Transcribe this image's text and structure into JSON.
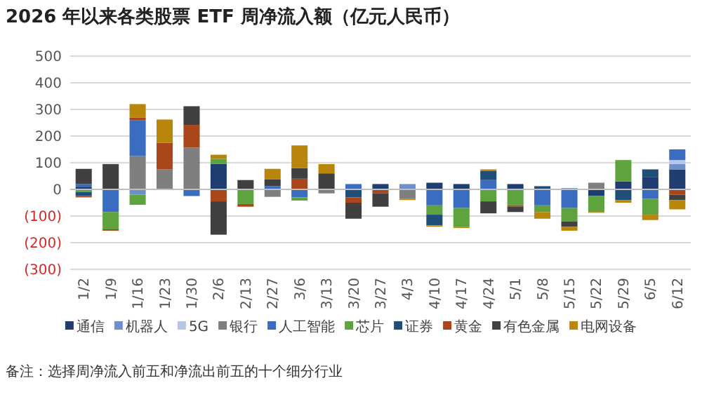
{
  "chart_data": {
    "type": "bar",
    "stacked": true,
    "title": "2026 年以来各类股票 ETF 周净流入额（亿元人民币）",
    "categories": [
      "1/2",
      "1/9",
      "1/16",
      "1/23",
      "1/30",
      "2/6",
      "2/13",
      "2/27",
      "3/6",
      "3/13",
      "3/20",
      "3/27",
      "4/3",
      "4/10",
      "4/17",
      "4/24",
      "5/1",
      "5/8",
      "5/15",
      "5/22",
      "5/29",
      "6/5",
      "6/12"
    ],
    "series": [
      {
        "name": "通信",
        "color": "#1f3d6e",
        "values": [
          10,
          null,
          null,
          null,
          null,
          95,
          null,
          null,
          null,
          null,
          null,
          20,
          null,
          25,
          20,
          null,
          20,
          null,
          null,
          -25,
          30,
          45,
          75
        ]
      },
      {
        "name": "机器人",
        "color": "#6f8fca",
        "values": [
          null,
          null,
          -20,
          null,
          null,
          null,
          null,
          null,
          null,
          null,
          null,
          null,
          20,
          null,
          null,
          null,
          null,
          null,
          5,
          null,
          null,
          null,
          20
        ]
      },
      {
        "name": "5G",
        "color": "#b4c7e7",
        "values": [
          null,
          null,
          null,
          null,
          null,
          null,
          null,
          null,
          null,
          null,
          null,
          null,
          null,
          null,
          null,
          null,
          null,
          null,
          null,
          null,
          null,
          null,
          15
        ]
      },
      {
        "name": "银行",
        "color": "#7f7f7f",
        "values": [
          null,
          null,
          125,
          75,
          157,
          null,
          null,
          -28,
          null,
          -15,
          null,
          null,
          -35,
          null,
          null,
          null,
          null,
          null,
          null,
          25,
          null,
          null,
          null
        ]
      },
      {
        "name": "人工智能",
        "color": "#3a6cc0",
        "values": [
          10,
          -85,
          135,
          null,
          -25,
          null,
          null,
          12,
          -30,
          null,
          20,
          null,
          null,
          -60,
          -70,
          35,
          null,
          -60,
          -70,
          null,
          null,
          -35,
          40
        ]
      },
      {
        "name": "芯片",
        "color": "#5fa33e",
        "values": [
          -10,
          -65,
          -38,
          null,
          null,
          20,
          -55,
          null,
          -12,
          null,
          null,
          null,
          null,
          -35,
          -70,
          -45,
          -60,
          -25,
          -50,
          -60,
          80,
          -60,
          null
        ]
      },
      {
        "name": "证券",
        "color": "#1f4e79",
        "values": [
          -15,
          null,
          null,
          null,
          null,
          null,
          null,
          null,
          null,
          null,
          -30,
          null,
          null,
          -40,
          null,
          35,
          null,
          12,
          null,
          null,
          -40,
          30,
          null
        ]
      },
      {
        "name": "黄金",
        "color": "#a9461a",
        "values": [
          -5,
          -5,
          10,
          100,
          85,
          -45,
          -10,
          null,
          40,
          null,
          -20,
          -15,
          null,
          null,
          null,
          null,
          -5,
          null,
          null,
          null,
          null,
          null,
          -20
        ]
      },
      {
        "name": "有色金属",
        "color": "#404040",
        "values": [
          57,
          95,
          null,
          null,
          70,
          -125,
          35,
          25,
          40,
          60,
          -60,
          -50,
          null,
          null,
          null,
          -45,
          -20,
          null,
          -20,
          null,
          null,
          null,
          -20
        ]
      },
      {
        "name": "电网设备",
        "color": "#b8860b",
        "values": [
          null,
          null,
          50,
          87,
          null,
          15,
          null,
          40,
          85,
          35,
          null,
          null,
          -5,
          -5,
          -5,
          5,
          null,
          -25,
          -15,
          -3,
          -10,
          -20,
          -35
        ]
      }
    ],
    "ylim": [
      -300,
      500
    ],
    "yticks": [
      500,
      400,
      300,
      200,
      100,
      0,
      {
        "value": -100,
        "label": "(100)"
      },
      {
        "value": -200,
        "label": "(200)"
      },
      {
        "value": -300,
        "label": "(300)"
      }
    ],
    "grid": "y",
    "legend": "bottom",
    "annotations": [
      "备注：选择周净流入前五和净流出前五的十个细分行业"
    ]
  }
}
